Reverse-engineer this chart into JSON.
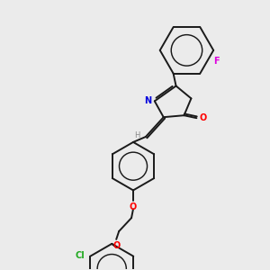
{
  "background_color": "#ebebeb",
  "bond_color": "#1a1a1a",
  "atom_colors": {
    "N": "#0000dd",
    "O": "#ff0000",
    "F": "#dd00dd",
    "Cl": "#22aa22",
    "H": "#888888"
  },
  "figsize": [
    3.0,
    3.0
  ],
  "dpi": 100
}
